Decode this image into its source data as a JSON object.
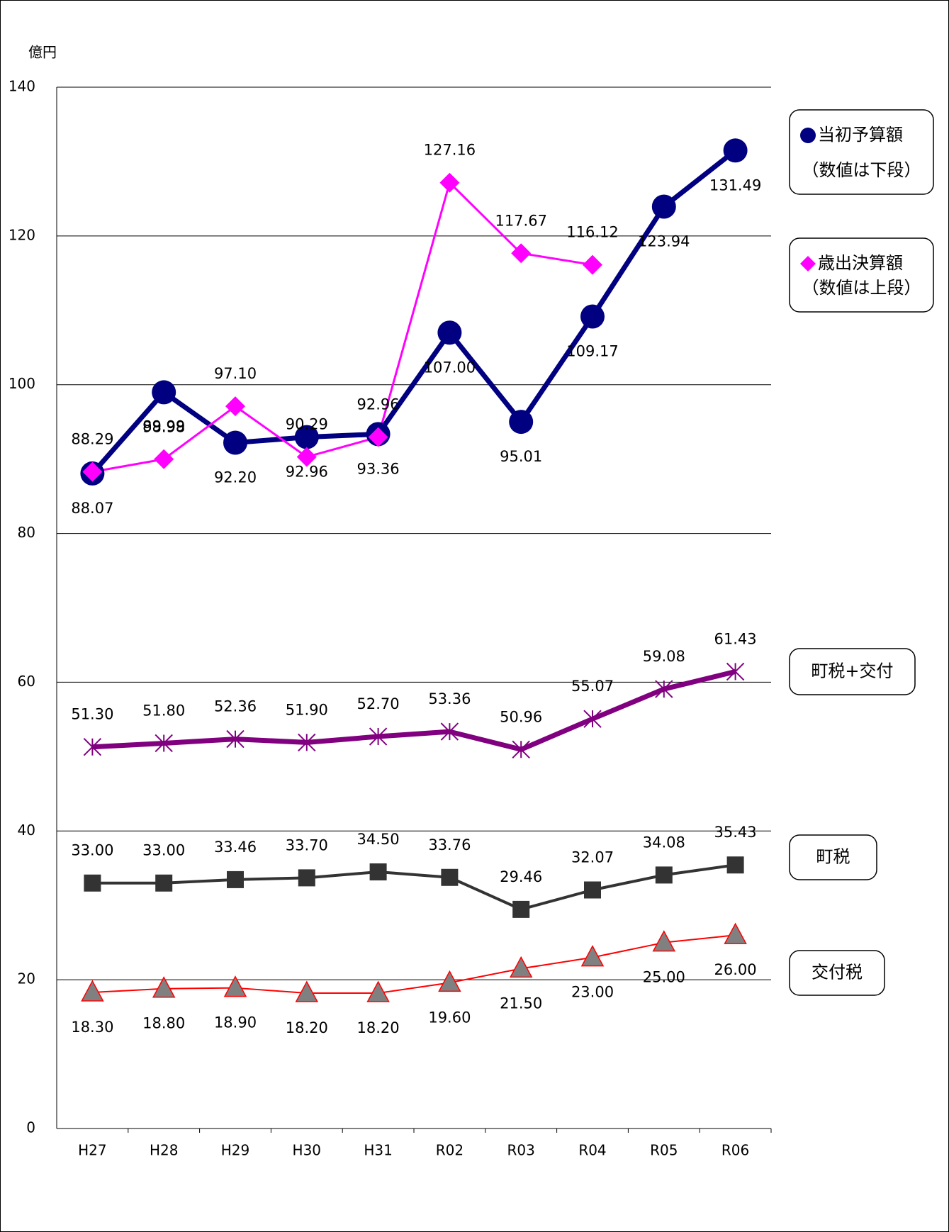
{
  "chart_data": {
    "type": "line",
    "title": "億円",
    "categories": [
      "H27",
      "H28",
      "H29",
      "H30",
      "H31",
      "R02",
      "R03",
      "R04",
      "R05",
      "R06"
    ],
    "ylim": [
      0,
      140
    ],
    "yticks": [
      0,
      20,
      40,
      60,
      80,
      100,
      120,
      140
    ],
    "grid": true,
    "series": [
      {
        "name": "当初予算額",
        "note": "（数値は下段）",
        "color": "#000080",
        "marker": "circle",
        "label_position": "below",
        "values": [
          88.07,
          98.98,
          92.2,
          92.96,
          93.36,
          107.0,
          95.01,
          109.17,
          123.94,
          131.49
        ],
        "value_labels": [
          "88.07",
          "98.98",
          "92.20",
          "92.96",
          "93.36",
          "107.00",
          "95.01",
          "109.17",
          "123.94",
          "131.49"
        ]
      },
      {
        "name": "歳出決算額",
        "note": "（数値は上段）",
        "color": "#ff00ff",
        "marker": "diamond",
        "label_position": "above",
        "values": [
          88.29,
          89.99,
          97.1,
          90.29,
          92.96,
          127.16,
          117.67,
          116.12,
          null,
          null
        ],
        "value_labels": [
          "88.29",
          "89.99",
          "97.10",
          "90.29",
          "92.96",
          "127.16",
          "117.67",
          "116.12",
          null,
          null
        ]
      },
      {
        "name": "町税+交付",
        "color": "#800080",
        "marker": "asterisk",
        "label_position": "above",
        "values": [
          51.3,
          51.8,
          52.36,
          51.9,
          52.7,
          53.36,
          50.96,
          55.07,
          59.08,
          61.43
        ],
        "value_labels": [
          "51.30",
          "51.80",
          "52.36",
          "51.90",
          "52.70",
          "53.36",
          "50.96",
          "55.07",
          "59.08",
          "61.43"
        ]
      },
      {
        "name": "町税",
        "color": "#333333",
        "marker": "square",
        "label_position": "above",
        "values": [
          33.0,
          33.0,
          33.46,
          33.7,
          34.5,
          33.76,
          29.46,
          32.07,
          34.08,
          35.43
        ],
        "value_labels": [
          "33.00",
          "33.00",
          "33.46",
          "33.70",
          "34.50",
          "33.76",
          "29.46",
          "32.07",
          "34.08",
          "35.43"
        ]
      },
      {
        "name": "交付税",
        "color": "#ff0000",
        "marker": "triangle",
        "label_position": "below",
        "values": [
          18.3,
          18.8,
          18.9,
          18.2,
          18.2,
          19.6,
          21.5,
          23.0,
          25.0,
          26.0
        ],
        "value_labels": [
          "18.30",
          "18.80",
          "18.90",
          "18.20",
          "18.20",
          "19.60",
          "21.50",
          "23.00",
          "25.00",
          "26.00"
        ]
      }
    ]
  }
}
